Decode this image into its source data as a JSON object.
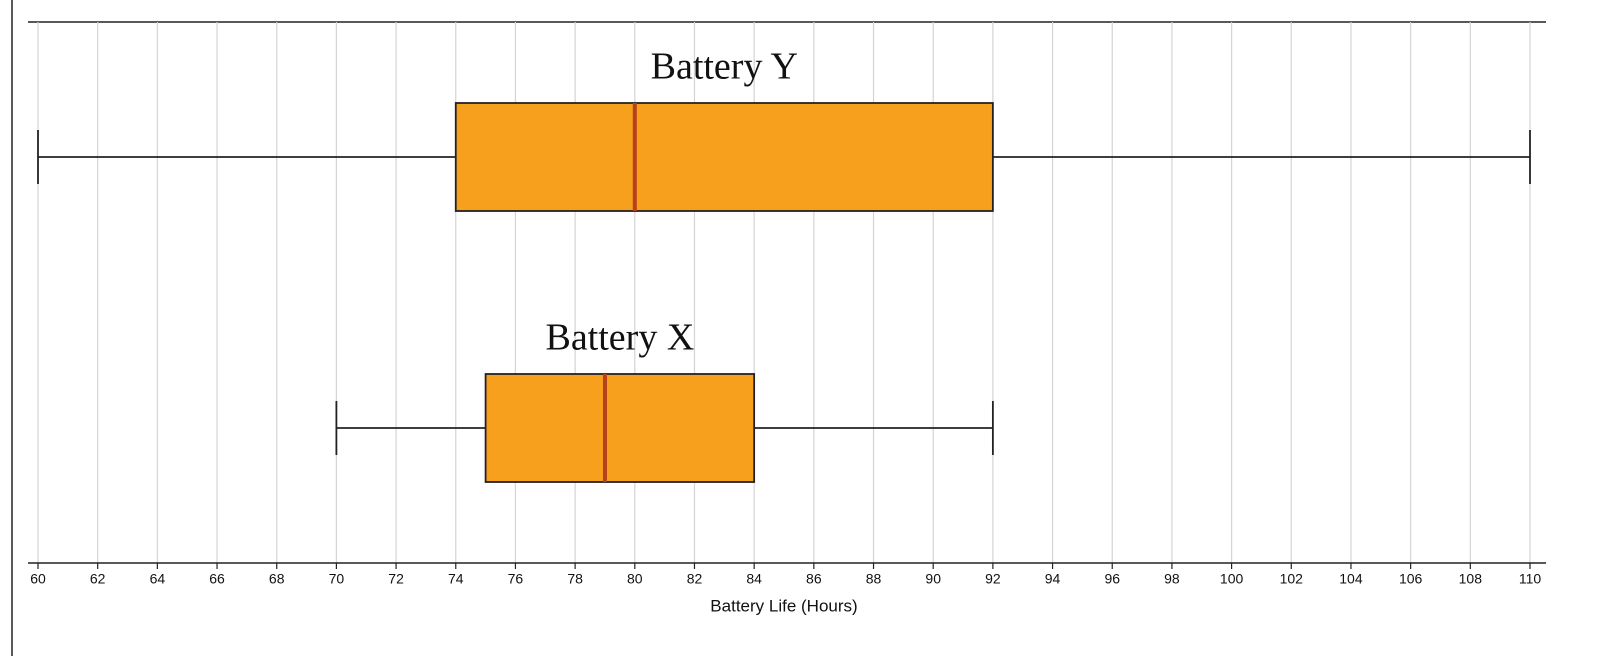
{
  "chart_data": {
    "type": "box",
    "x_label": "Battery Life (Hours)",
    "boxes": [
      {
        "name": "Battery Y",
        "min": 60,
        "q1": 74,
        "median": 80,
        "q3": 92,
        "max": 110
      },
      {
        "name": "Battery X",
        "min": 70,
        "q1": 75,
        "median": 79,
        "q3": 84,
        "max": 92
      }
    ],
    "box_color": "#f7a01e",
    "median_color": "#b5401a",
    "xlim": [
      60,
      110
    ],
    "xticks": [
      60,
      62,
      64,
      66,
      68,
      70,
      72,
      74,
      76,
      78,
      80,
      82,
      84,
      86,
      88,
      90,
      92,
      94,
      96,
      98,
      100,
      102,
      104,
      106,
      108,
      110
    ],
    "grid": true
  }
}
